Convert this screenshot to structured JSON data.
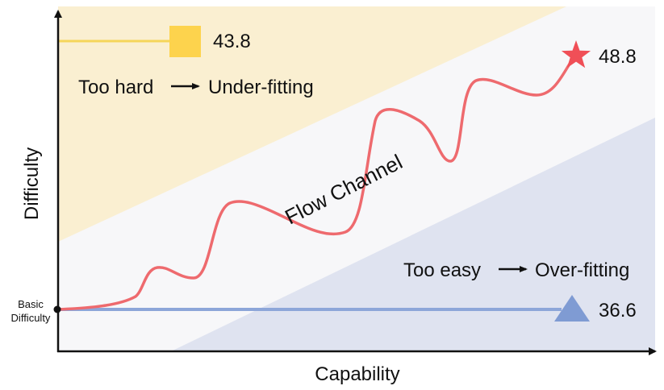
{
  "axes": {
    "x_label": "Capability",
    "y_label": "Difficulty",
    "basic_line1": "Basic",
    "basic_line2": "Difficulty"
  },
  "regions": {
    "hard_label": "Too hard",
    "hard_result": "Under-fitting",
    "easy_label": "Too easy",
    "easy_result": "Over-fitting",
    "channel_label": "Flow Channel"
  },
  "markers": {
    "square_value": "43.8",
    "star_value": "48.8",
    "triangle_value": "36.6"
  },
  "colors": {
    "hard_region": "#faefd1",
    "easy_region": "#dfe3f0",
    "channel": "#f7f7f9",
    "curve": "#ee6a6e",
    "square_line": "#f5d65a",
    "square": "#fdd34d",
    "star": "#f04f57",
    "triangle": "#7f9bd3",
    "triangle_line": "#8da6d9"
  },
  "icons": {
    "arrow": "right-arrow-icon",
    "star": "star-icon",
    "square": "square-icon",
    "triangle": "triangle-icon"
  }
}
